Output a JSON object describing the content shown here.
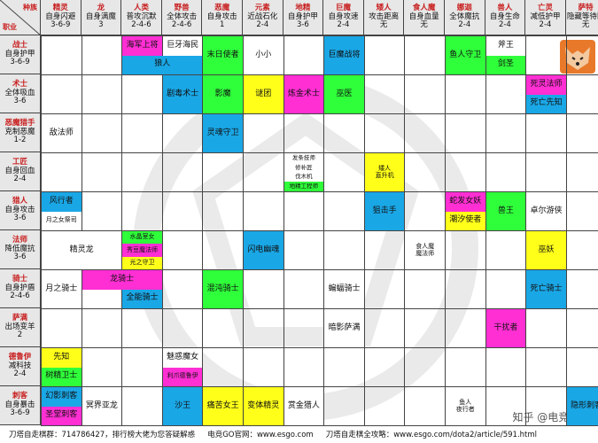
{
  "corner": {
    "race": "种族",
    "class": "职业"
  },
  "races": [
    {
      "name": "精灵",
      "effect": "自身闪避",
      "count": "3-6-9"
    },
    {
      "name": "龙",
      "effect": "自身满魔",
      "count": "3"
    },
    {
      "name": "人类",
      "effect": "普攻沉默",
      "count": "2-4-6"
    },
    {
      "name": "野兽",
      "effect": "全体攻击",
      "count": "2-4-6"
    },
    {
      "name": "恶魔",
      "effect": "自身攻击",
      "count": "1"
    },
    {
      "name": "元素",
      "effect": "近战石化",
      "count": "2-4"
    },
    {
      "name": "地精",
      "effect": "自身护甲",
      "count": "3-6"
    },
    {
      "name": "巨魔",
      "effect": "自身攻速",
      "count": "2-4"
    },
    {
      "name": "矮人",
      "effect": "攻击距离",
      "count": "无"
    },
    {
      "name": "食人魔",
      "effect": "自身血量",
      "count": "无"
    },
    {
      "name": "娜迦",
      "effect": "全体魔抗",
      "count": "2-4"
    },
    {
      "name": "兽人",
      "effect": "自身生命",
      "count": "2-4"
    },
    {
      "name": "亡灵",
      "effect": "减低护甲",
      "count": "2-4"
    },
    {
      "name": "萨特",
      "effect": "隐藏等待区",
      "count": "无"
    }
  ],
  "classes": [
    {
      "name": "战士",
      "effect": "自身护甲",
      "count": "3-6-9"
    },
    {
      "name": "术士",
      "effect": "全体吸血",
      "count": "3-6"
    },
    {
      "name": "恶魔猎手",
      "effect": "克制恶魔",
      "count": "1-2"
    },
    {
      "name": "工匠",
      "effect": "自身回血",
      "count": "2-4"
    },
    {
      "name": "猎人",
      "effect": "自身攻击",
      "count": "3-6"
    },
    {
      "name": "法师",
      "effect": "降低魔抗",
      "count": "3-6"
    },
    {
      "name": "骑士",
      "effect": "自身护盾",
      "count": "2-4-6"
    },
    {
      "name": "萨满",
      "effect": "出场变羊",
      "count": "2"
    },
    {
      "name": "德鲁伊",
      "effect": "减科技",
      "count": "2-4"
    },
    {
      "name": "刺客",
      "effect": "自身暴击",
      "count": "3-6-9"
    }
  ],
  "cells": [
    {
      "r": 0,
      "c": 2,
      "sub": 0,
      "text": "海军上将",
      "color": "#ff2fd4"
    },
    {
      "r": 0,
      "c": 2,
      "sub": 1,
      "span": 2,
      "text": "狼人",
      "color": "#1aa7e6"
    },
    {
      "r": 0,
      "c": 3,
      "sub": 0,
      "text": "巨牙海民",
      "color": "#ffffff"
    },
    {
      "r": 0,
      "c": 4,
      "text": "末日使者",
      "color": "#2fff3a"
    },
    {
      "r": 0,
      "c": 5,
      "text": "小小",
      "color": "#ffffff"
    },
    {
      "r": 0,
      "c": 7,
      "text": "巨魔战将",
      "color": "#1aa7e6"
    },
    {
      "r": 0,
      "c": 10,
      "text": "鱼人守卫",
      "color": "#2fff3a"
    },
    {
      "r": 0,
      "c": 11,
      "sub": 0,
      "text": "斧王",
      "color": "#ffffff"
    },
    {
      "r": 0,
      "c": 11,
      "sub": 1,
      "text": "剑圣",
      "color": "#2fff3a"
    },
    {
      "r": 1,
      "c": 3,
      "text": "剧毒术士",
      "color": "#1aa7e6"
    },
    {
      "r": 1,
      "c": 4,
      "text": "影魔",
      "color": "#2fff3a"
    },
    {
      "r": 1,
      "c": 5,
      "text": "谜团",
      "color": "#ffff1a"
    },
    {
      "r": 1,
      "c": 6,
      "text": "炼金术士",
      "color": "#ff2fd4"
    },
    {
      "r": 1,
      "c": 7,
      "text": "巫医",
      "color": "#2fff3a"
    },
    {
      "r": 1,
      "c": 12,
      "sub": 0,
      "text": "死灵法师",
      "color": "#ff2fd4"
    },
    {
      "r": 1,
      "c": 12,
      "sub": 1,
      "text": "死亡先知",
      "color": "#1aa7e6"
    },
    {
      "r": 2,
      "c": 0,
      "text": "敌法师",
      "color": "#ffffff"
    },
    {
      "r": 2,
      "c": 4,
      "text": "灵魂守卫",
      "color": "#1aa7e6"
    },
    {
      "r": 3,
      "c": 6,
      "q": 0,
      "text": "发条技师",
      "color": "#ffffff"
    },
    {
      "r": 3,
      "c": 6,
      "q": 1,
      "text": "修补匠",
      "color": "#ffffff"
    },
    {
      "r": 3,
      "c": 6,
      "q": 2,
      "text": "伐木机",
      "color": "#ffffff"
    },
    {
      "r": 3,
      "c": 6,
      "q": 3,
      "text": "地精工程师",
      "color": "#2fff3a"
    },
    {
      "r": 3,
      "c": 8,
      "text": "矮人\n直升机",
      "color": "#ffff1a"
    },
    {
      "r": 4,
      "c": 0,
      "sub": 0,
      "text": "风行者",
      "color": "#1aa7e6"
    },
    {
      "r": 4,
      "c": 0,
      "sub": 1,
      "text": "月之女祭司",
      "color": "#ffffff"
    },
    {
      "r": 4,
      "c": 8,
      "text": "狙击手",
      "color": "#1aa7e6"
    },
    {
      "r": 4,
      "c": 10,
      "sub": 0,
      "text": "蛇发女妖",
      "color": "#ff2fd4"
    },
    {
      "r": 4,
      "c": 10,
      "sub": 1,
      "text": "潮汐使者",
      "color": "#ffff1a"
    },
    {
      "r": 4,
      "c": 11,
      "text": "兽王",
      "color": "#2fff3a"
    },
    {
      "r": 4,
      "c": 12,
      "text": "卓尔游侠",
      "color": "#ffffff"
    },
    {
      "r": 5,
      "c": 0,
      "span": 2,
      "text": "精灵龙",
      "color": "#ffffff"
    },
    {
      "r": 5,
      "c": 2,
      "q3": 0,
      "text": "水晶室女",
      "color": "#2fff3a"
    },
    {
      "r": 5,
      "c": 2,
      "q3": 1,
      "text": "秀豆魔法师",
      "color": "#ff2fd4"
    },
    {
      "r": 5,
      "c": 2,
      "q3": 2,
      "text": "光之守卫",
      "color": "#ffff1a"
    },
    {
      "r": 5,
      "c": 5,
      "text": "闪电幽魂",
      "color": "#1aa7e6"
    },
    {
      "r": 5,
      "c": 9,
      "text": "食人魔\n魔法师",
      "color": "#ffffff"
    },
    {
      "r": 5,
      "c": 12,
      "text": "巫妖",
      "color": "#ffff1a"
    },
    {
      "r": 6,
      "c": 0,
      "text": "月之骑士",
      "color": "#ffffff"
    },
    {
      "r": 6,
      "c": 1,
      "sub": 0,
      "span": 2,
      "text": "龙骑士",
      "color": "#ff2fd4"
    },
    {
      "r": 6,
      "c": 2,
      "sub": 1,
      "text": "全能骑士",
      "color": "#1aa7e6"
    },
    {
      "r": 6,
      "c": 4,
      "text": "混沌骑士",
      "color": "#2fff3a"
    },
    {
      "r": 6,
      "c": 7,
      "text": "蝙蝠骑士",
      "color": "#ffffff"
    },
    {
      "r": 6,
      "c": 12,
      "text": "死亡骑士",
      "color": "#1aa7e6"
    },
    {
      "r": 7,
      "c": 7,
      "text": "暗影萨满",
      "color": "#ffffff"
    },
    {
      "r": 7,
      "c": 11,
      "text": "干扰者",
      "color": "#ff2fd4"
    },
    {
      "r": 8,
      "c": 0,
      "sub": 0,
      "text": "先知",
      "color": "#ffff1a"
    },
    {
      "r": 8,
      "c": 0,
      "sub": 1,
      "text": "树精卫士",
      "color": "#2fff3a"
    },
    {
      "r": 8,
      "c": 3,
      "sub": 0,
      "text": "魅惑魔女",
      "color": "#ffffff"
    },
    {
      "r": 8,
      "c": 3,
      "sub": 1,
      "text": "利爪德鲁伊",
      "color": "#ff2fd4"
    },
    {
      "r": 9,
      "c": 0,
      "sub": 0,
      "text": "幻影刺客",
      "color": "#1aa7e6"
    },
    {
      "r": 9,
      "c": 0,
      "sub": 1,
      "text": "圣堂刺客",
      "color": "#ff2fd4"
    },
    {
      "r": 9,
      "c": 1,
      "text": "冥界亚龙",
      "color": "#ffffff"
    },
    {
      "r": 9,
      "c": 3,
      "text": "沙王",
      "color": "#1aa7e6"
    },
    {
      "r": 9,
      "c": 4,
      "text": "痛苦女王",
      "color": "#ffff1a"
    },
    {
      "r": 9,
      "c": 5,
      "text": "变体精灵",
      "color": "#ffff1a"
    },
    {
      "r": 9,
      "c": 6,
      "text": "赏金猎人",
      "color": "#ffffff"
    },
    {
      "r": 9,
      "c": 10,
      "text": "鱼人\n夜行者",
      "color": "#ffffff"
    },
    {
      "r": 9,
      "c": 13,
      "text": "隐形刺客",
      "color": "#1aa7e6"
    }
  ],
  "footer": {
    "group": "刀塔自走棋群：714786427，排行榜大佬为您答疑解惑",
    "site": "电竞GO官网：www.esgo.com",
    "guide": "刀塔自走棋全攻略：www.esgo.com/dota2/article/591.html"
  },
  "watermark": "知乎 @电竞GO"
}
